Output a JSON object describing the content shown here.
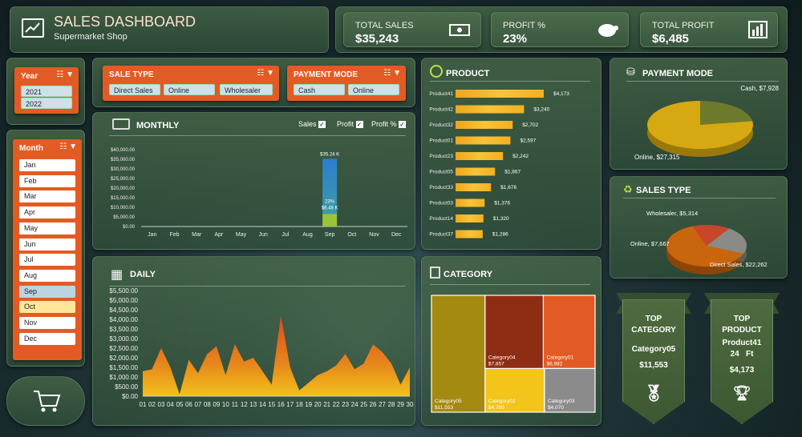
{
  "header": {
    "title": "SALES DASHBOARD",
    "subtitle": "Supermarket Shop"
  },
  "kpis": {
    "total_sales_label": "TOTAL SALES",
    "total_sales": "$35,243",
    "profit_pct_label": "PROFIT %",
    "profit_pct": "23%",
    "total_profit_label": "TOTAL PROFIT",
    "total_profit": "$6,485"
  },
  "year_slicer": {
    "title": "Year",
    "items": [
      "2021",
      "2022"
    ]
  },
  "month_slicer": {
    "title": "Month",
    "items": [
      "Jan",
      "Feb",
      "Mar",
      "Apr",
      "May",
      "Jun",
      "Jul",
      "Aug",
      "Sep",
      "Oct",
      "Nov",
      "Dec"
    ],
    "selected": "Sep",
    "hovered": "Oct"
  },
  "sale_type_slicer": {
    "title": "SALE TYPE",
    "items": [
      "Direct Sales",
      "Online",
      "Wholesaler"
    ]
  },
  "payment_slicer": {
    "title": "PAYMENT MODE",
    "items": [
      "Cash",
      "Online"
    ]
  },
  "monthly": {
    "title": "MONTHLY",
    "toggles": [
      "Sales",
      "Profit",
      "Profit %"
    ]
  },
  "daily": {
    "title": "DAILY"
  },
  "product": {
    "title": "PRODUCT"
  },
  "payment_mode": {
    "title": "PAYMENT MODE"
  },
  "sales_type": {
    "title": "SALES TYPE"
  },
  "category": {
    "title": "CATEGORY"
  },
  "top_category": {
    "title_1": "TOP",
    "title_2": "CATEGORY",
    "name": "Category05",
    "value": "$11,553"
  },
  "top_product": {
    "title_1": "TOP",
    "title_2": "PRODUCT",
    "name": "Product41",
    "extra": "24   Ft",
    "value": "$4,173"
  },
  "colors": {
    "orange": "#e35b24",
    "gold": "#f0b400",
    "panel": "#3f5f46",
    "blue": "#2e7fc0"
  },
  "chart_data": [
    {
      "type": "bar",
      "title": "MONTHLY",
      "categories": [
        "Jan",
        "Feb",
        "Mar",
        "Apr",
        "May",
        "Jun",
        "Jul",
        "Aug",
        "Sep",
        "Oct",
        "Nov",
        "Dec"
      ],
      "series": [
        {
          "name": "Sales",
          "values": [
            0,
            0,
            0,
            0,
            0,
            0,
            0,
            0,
            35240,
            0,
            0,
            0
          ]
        },
        {
          "name": "Profit",
          "values": [
            0,
            0,
            0,
            0,
            0,
            0,
            0,
            0,
            6480,
            0,
            0,
            0
          ]
        }
      ],
      "labels": [
        "$35.24 K",
        "23%",
        "$6.48 K"
      ],
      "yticks": [
        "$40,000.00",
        "$35,000.00",
        "$30,000.00",
        "$25,000.00",
        "$20,000.00",
        "$15,000.00",
        "$10,000.00",
        "$5,000.00",
        "$0.00"
      ],
      "ylim": [
        0,
        40000
      ]
    },
    {
      "type": "area",
      "title": "DAILY",
      "x": [
        "01",
        "02",
        "03",
        "04",
        "05",
        "06",
        "07",
        "08",
        "09",
        "10",
        "11",
        "12",
        "13",
        "14",
        "15",
        "16",
        "17",
        "18",
        "19",
        "20",
        "21",
        "22",
        "23",
        "24",
        "25",
        "26",
        "27",
        "28",
        "29",
        "30"
      ],
      "values": [
        1300,
        1400,
        2500,
        1500,
        100,
        1900,
        1200,
        2200,
        2600,
        1100,
        2700,
        1800,
        2000,
        1300,
        600,
        4200,
        1500,
        300,
        700,
        1100,
        1300,
        1600,
        2200,
        1400,
        1700,
        2700,
        2300,
        1700,
        600,
        1500
      ],
      "yticks": [
        "$5,500.00",
        "$5,000.00",
        "$4,500.00",
        "$4,000.00",
        "$3,500.00",
        "$3,000.00",
        "$2,500.00",
        "$2,000.00",
        "$1,500.00",
        "$1,000.00",
        "$500.00",
        "$0.00"
      ],
      "ylim": [
        0,
        5500
      ]
    },
    {
      "type": "bar",
      "title": "PRODUCT",
      "categories": [
        "Product41",
        "Product42",
        "Product32",
        "Product01",
        "Product23",
        "Product05",
        "Product33",
        "Product03",
        "Product14",
        "Product37"
      ],
      "values": [
        4173,
        3240,
        2702,
        2597,
        2242,
        1867,
        1676,
        1376,
        1320,
        1286
      ],
      "labels": [
        "$4,173",
        "$3,240",
        "$2,702",
        "$2,597",
        "$2,242",
        "$1,867",
        "$1,676",
        "$1,376",
        "$1,320",
        "$1,286"
      ]
    },
    {
      "type": "pie",
      "title": "PAYMENT MODE",
      "categories": [
        "Cash",
        "Online"
      ],
      "values": [
        7928,
        27315
      ],
      "labels": [
        "Cash, $7,928",
        "Online, $27,315"
      ]
    },
    {
      "type": "pie",
      "title": "SALES TYPE",
      "categories": [
        "Wholesaler",
        "Online",
        "Direct Sales"
      ],
      "values": [
        5314,
        7667,
        22262
      ],
      "labels": [
        "Wholesaler, $5,314",
        "Online, $7,667",
        "Direct Sales, $22,262"
      ]
    },
    {
      "type": "heatmap",
      "title": "CATEGORY",
      "categories": [
        "Category05",
        "Category04",
        "Category01",
        "Category02",
        "Category03"
      ],
      "values": [
        11553,
        7857,
        6982,
        4780,
        4070
      ],
      "labels": [
        "$11,553",
        "$7,857",
        "$6,982",
        "$4,780",
        "$4,070"
      ]
    }
  ]
}
